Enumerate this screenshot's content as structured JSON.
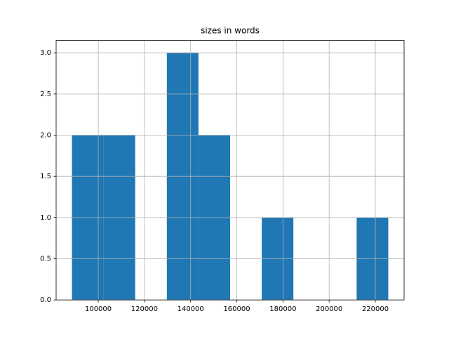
{
  "chart_data": {
    "type": "histogram",
    "title": "sizes in words",
    "bins": [
      88600,
      102300,
      116000,
      129700,
      143400,
      157100,
      170800,
      184500,
      198200,
      211900,
      225600
    ],
    "counts": [
      2,
      2,
      0,
      3,
      2,
      0,
      1,
      0,
      0,
      1
    ],
    "color": "#1f77b4",
    "xlim": [
      81750,
      232450
    ],
    "xticks": [
      100000,
      120000,
      140000,
      160000,
      180000,
      200000,
      220000
    ],
    "ylim": [
      0,
      3.15
    ],
    "yticks": [
      {
        "value": 0,
        "label": "0.0"
      },
      0.5,
      {
        "value": 1,
        "label": "1.0"
      },
      1.5,
      {
        "value": 2,
        "label": "2.0"
      },
      2.5,
      {
        "value": 3,
        "label": "3.0"
      }
    ],
    "grid": true
  }
}
